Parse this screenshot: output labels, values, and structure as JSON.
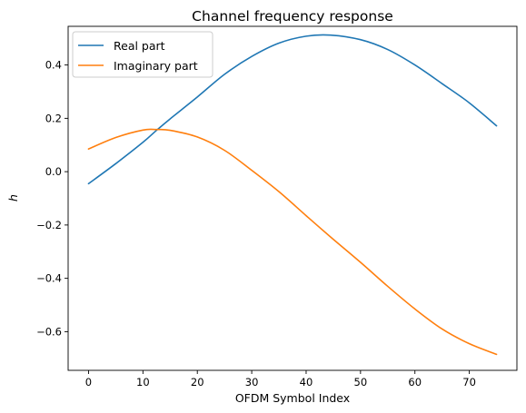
{
  "chart_data": {
    "type": "line",
    "title": "Channel frequency response",
    "xlabel": "OFDM Symbol Index",
    "ylabel": "h",
    "xlim": [
      -3.75,
      78.75
    ],
    "ylim": [
      -0.745,
      0.545
    ],
    "xticks": [
      0,
      10,
      20,
      30,
      40,
      50,
      60,
      70
    ],
    "xtick_labels": [
      "0",
      "10",
      "20",
      "30",
      "40",
      "50",
      "60",
      "70"
    ],
    "yticks": [
      -0.6,
      -0.4,
      -0.2,
      0.0,
      0.2,
      0.4
    ],
    "ytick_labels": [
      "−0.6",
      "−0.4",
      "−0.2",
      "0.0",
      "0.2",
      "0.4"
    ],
    "grid": false,
    "legend_position": "upper-left",
    "x": [
      0,
      5,
      10,
      12.5,
      15,
      20,
      25,
      30,
      35,
      40,
      44.5,
      50,
      55,
      60,
      65,
      70,
      75
    ],
    "series": [
      {
        "name": "Real part",
        "color": "#1f77b4",
        "values": [
          -0.045,
          0.03,
          0.11,
          0.155,
          0.198,
          0.28,
          0.365,
          0.432,
          0.482,
          0.508,
          0.512,
          0.495,
          0.458,
          0.4,
          0.33,
          0.258,
          0.172
        ]
      },
      {
        "name": "Imaginary part",
        "color": "#ff7f0e",
        "values": [
          0.085,
          0.128,
          0.156,
          0.158,
          0.155,
          0.13,
          0.08,
          0.005,
          -0.075,
          -0.165,
          -0.245,
          -0.34,
          -0.43,
          -0.515,
          -0.59,
          -0.645,
          -0.685
        ]
      }
    ]
  }
}
